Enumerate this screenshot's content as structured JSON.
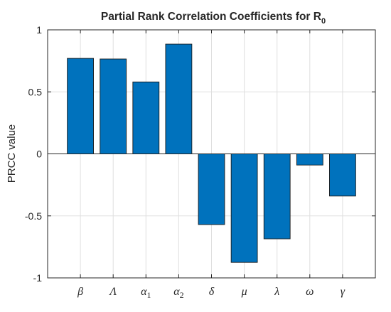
{
  "chart_data": {
    "type": "bar",
    "title": "Partial Rank Correlation Coefficients for R",
    "title_subscript": "0",
    "xlabel": "",
    "ylabel": "PRCC value",
    "ylim": [
      -1,
      1
    ],
    "yticks": [
      -1,
      -0.5,
      0,
      0.5,
      1
    ],
    "ytick_labels": [
      "-1",
      "-0.5",
      "0",
      "0.5",
      "1"
    ],
    "grid": true,
    "bar_color": "#0072bd",
    "categories": [
      {
        "symbol": "β",
        "sub": ""
      },
      {
        "symbol": "Λ",
        "sub": ""
      },
      {
        "symbol": "α",
        "sub": "1"
      },
      {
        "symbol": "α",
        "sub": "2"
      },
      {
        "symbol": "δ",
        "sub": ""
      },
      {
        "symbol": "μ",
        "sub": ""
      },
      {
        "symbol": "λ",
        "sub": ""
      },
      {
        "symbol": "ω",
        "sub": ""
      },
      {
        "symbol": "γ",
        "sub": ""
      }
    ],
    "values": [
      0.77,
      0.765,
      0.58,
      0.885,
      -0.57,
      -0.875,
      -0.685,
      -0.09,
      -0.34
    ]
  }
}
